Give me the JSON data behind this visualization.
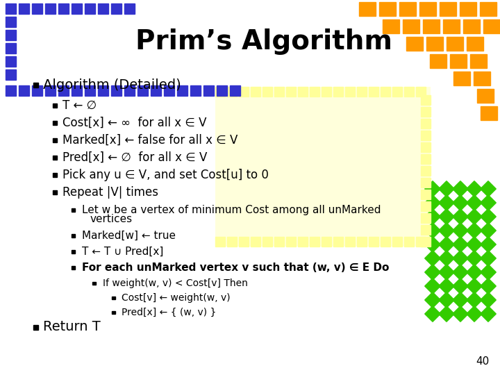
{
  "title": "Prim’s Algorithm",
  "bg_color": "#ffffff",
  "title_color": "#000000",
  "title_fontsize": 28,
  "blue_color": "#3333cc",
  "orange_color": "#ff9900",
  "green_color": "#33cc00",
  "yellow_color": "#ffff99",
  "slide_number": "40",
  "lines": [
    {
      "level": 0,
      "text": "Algorithm (Detailed)",
      "bold": false
    },
    {
      "level": 1,
      "text": "T ← ∅",
      "bold": false
    },
    {
      "level": 1,
      "text": "Cost[x] ← ∞  for all x ∈ V",
      "bold": false
    },
    {
      "level": 1,
      "text": "Marked[x] ← false for all x ∈ V",
      "bold": false
    },
    {
      "level": 1,
      "text": "Pred[x] ← ∅  for all x ∈ V",
      "bold": false
    },
    {
      "level": 1,
      "text": "Pick any u ∈ V, and set Cost[u] to 0",
      "bold": false
    },
    {
      "level": 1,
      "text": "Repeat |V| times",
      "bold": false
    },
    {
      "level": 2,
      "text": "Let w be a vertex of minimum Cost among all unMarked",
      "bold": false,
      "continuation": "vertices"
    },
    {
      "level": 2,
      "text": "Marked[w] ← true",
      "bold": false
    },
    {
      "level": 2,
      "text": "T ← T ∪ Pred[x]",
      "bold": false
    },
    {
      "level": 2,
      "text": "For each unMarked vertex v such that (w, v) ∈ E Do",
      "bold": true
    },
    {
      "level": 3,
      "text": "If weight(w, v) < Cost[v] Then",
      "bold": false
    },
    {
      "level": 4,
      "text": "Cost[v] ← weight(w, v)",
      "bold": false
    },
    {
      "level": 4,
      "text": "Pred[x] ← { (w, v) }",
      "bold": false
    },
    {
      "level": 0,
      "text": "Return T",
      "bold": false
    }
  ]
}
